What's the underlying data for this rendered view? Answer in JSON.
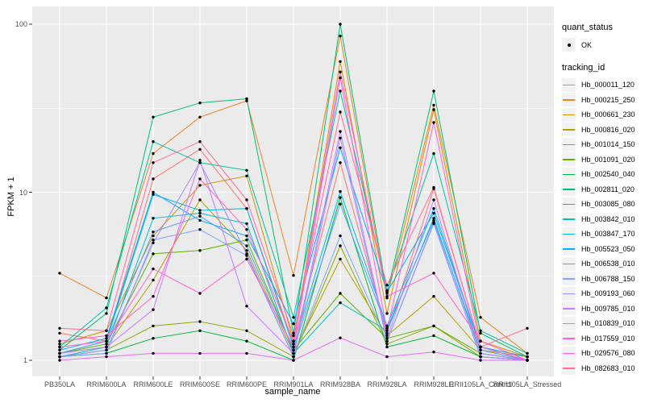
{
  "chart_data": {
    "type": "line",
    "title": "",
    "xlabel": "sample_name",
    "ylabel": "FPKM + 1",
    "y_scale": "log10",
    "ylim": [
      1,
      120
    ],
    "y_ticks": [
      "1",
      "10",
      "100"
    ],
    "grid": "on",
    "legend_position": "right",
    "categories": [
      "PB350LA",
      "RRIM600LA",
      "RRIM600LE",
      "RRIM600SE",
      "RRIM600PE",
      "RRIM901LA",
      "RRIM928BA",
      "RRIM928LA",
      "RRIM928LE",
      "RRII105LA_Control",
      "RRII105LA_Stressed"
    ],
    "point_color": "#000000",
    "panel_bg": "#ebebeb",
    "grid_color": "#ffffff",
    "key_bg": "#f2f2f2",
    "legend": {
      "quant_title": "quant_status",
      "quant_items": [
        {
          "label": "OK",
          "shape": "point"
        }
      ],
      "tracking_title": "tracking_id"
    },
    "series": [
      {
        "name": "Hb_000011_120",
        "color": "#F8766D",
        "values": [
          1.45,
          1.3,
          12,
          18,
          8,
          1.25,
          15,
          1.45,
          10.5,
          1.2,
          1.05
        ]
      },
      {
        "name": "Hb_000215_250",
        "color": "#E88526",
        "values": [
          3.3,
          2.35,
          17,
          28,
          35,
          3.2,
          85,
          2.35,
          33,
          1.8,
          1.1
        ]
      },
      {
        "name": "Hb_000661_230",
        "color": "#D39200",
        "values": [
          1.25,
          1.5,
          5.5,
          11,
          12.5,
          1.3,
          60,
          1.9,
          31,
          1.3,
          1.05
        ]
      },
      {
        "name": "Hb_000816_020",
        "color": "#B79F00",
        "values": [
          1.1,
          1.2,
          3.0,
          9.0,
          4.5,
          1.1,
          4.0,
          1.4,
          2.4,
          1.15,
          1.05
        ]
      },
      {
        "name": "Hb_001014_150",
        "color": "#93AA00",
        "values": [
          1.05,
          1.15,
          1.6,
          1.7,
          1.5,
          1.05,
          4.8,
          1.25,
          1.6,
          1.05,
          1.0
        ]
      },
      {
        "name": "Hb_001091_020",
        "color": "#5EB300",
        "values": [
          1.1,
          1.25,
          4.3,
          4.5,
          5.2,
          1.15,
          2.5,
          1.35,
          1.6,
          1.1,
          1.0
        ]
      },
      {
        "name": "Hb_002540_040",
        "color": "#00BA38",
        "values": [
          1.05,
          1.1,
          1.35,
          1.5,
          1.3,
          1.0,
          9.3,
          1.2,
          1.4,
          1.05,
          1.0
        ]
      },
      {
        "name": "Hb_002811_020",
        "color": "#00BF74",
        "values": [
          1.15,
          1.9,
          28,
          34,
          36,
          1.45,
          100,
          2.5,
          40,
          1.45,
          1.05
        ]
      },
      {
        "name": "Hb_003085_080",
        "color": "#00C19F",
        "values": [
          1.2,
          2.05,
          20,
          15,
          13.5,
          1.8,
          40,
          2.6,
          17,
          1.5,
          1.1
        ]
      },
      {
        "name": "Hb_003842_010",
        "color": "#00BFC4",
        "values": [
          1.05,
          1.2,
          7.0,
          7.5,
          6.5,
          1.1,
          2.2,
          1.5,
          7.0,
          1.1,
          1.0
        ]
      },
      {
        "name": "Hb_003847_170",
        "color": "#00B9E3",
        "values": [
          1.1,
          1.3,
          9.7,
          7.8,
          8.0,
          1.2,
          10.1,
          1.6,
          8.0,
          1.2,
          1.0
        ]
      },
      {
        "name": "Hb_005523_050",
        "color": "#00ACFC",
        "values": [
          1.15,
          1.35,
          10,
          6.8,
          5.5,
          1.65,
          18.4,
          2.55,
          7.5,
          1.2,
          1.05
        ]
      },
      {
        "name": "Hb_006538_010",
        "color": "#529EFF",
        "values": [
          1.1,
          1.3,
          5.8,
          7.2,
          4.8,
          1.15,
          8.5,
          1.55,
          6.8,
          1.15,
          1.0
        ]
      },
      {
        "name": "Hb_006788_150",
        "color": "#7CA8FF",
        "values": [
          1.05,
          1.1,
          5.2,
          6.0,
          4.2,
          1.05,
          5.5,
          1.3,
          6.5,
          1.05,
          1.0
        ]
      },
      {
        "name": "Hb_009193_060",
        "color": "#9590FF",
        "values": [
          1.05,
          1.15,
          5.0,
          15,
          4.3,
          1.05,
          21,
          1.3,
          6.6,
          1.05,
          1.0
        ]
      },
      {
        "name": "Hb_009785_010",
        "color": "#C77CFF",
        "values": [
          1.1,
          1.2,
          2.0,
          15.5,
          2.1,
          1.1,
          23,
          1.35,
          9.0,
          1.1,
          1.0
        ]
      },
      {
        "name": "Hb_010839_010",
        "color": "#E76BF3",
        "values": [
          1.0,
          1.05,
          1.1,
          1.1,
          1.1,
          1.0,
          1.36,
          1.05,
          1.12,
          1.0,
          1.0
        ]
      },
      {
        "name": "Hb_017559_010",
        "color": "#FA62DB",
        "values": [
          1.2,
          1.3,
          3.5,
          2.5,
          4.0,
          1.2,
          48,
          1.5,
          26,
          1.2,
          1.0
        ]
      },
      {
        "name": "Hb_029576_080",
        "color": "#FF61C7",
        "values": [
          1.3,
          1.4,
          2.4,
          12,
          6.0,
          1.3,
          52,
          2.4,
          3.3,
          1.3,
          1.0
        ]
      },
      {
        "name": "Hb_082683_010",
        "color": "#FF6B9E",
        "values": [
          1.55,
          1.5,
          15,
          20,
          9.0,
          1.4,
          30,
          2.8,
          10.7,
          1.2,
          1.55
        ]
      }
    ]
  }
}
